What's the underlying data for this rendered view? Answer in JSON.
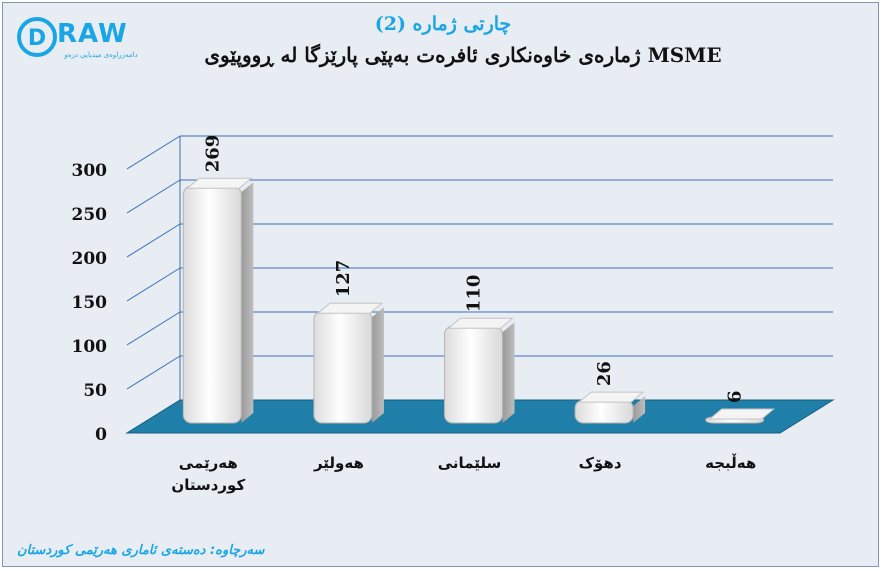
{
  "logo": {
    "word": "RAW",
    "letter": "D",
    "tagline": "دامەزراوەی میدیایی درەو"
  },
  "header": {
    "title": "چارتی ژمارە (2)",
    "subtitle": "ژمارەی خاوەنکاری ئافرەت بەپێی پارێزگا لە ڕووپێوی MSME"
  },
  "source": "سەرچاوە: دەستەی ئاماری هەرێمی کوردستان",
  "colors": {
    "accent": "#1aa6e4",
    "floor": "#1f7fa8",
    "grid": "#3a6fb5",
    "bar": "#f2f2f2"
  },
  "chart_data": {
    "type": "bar",
    "categories": [
      "هەرێمی کوردستان",
      "هەولێر",
      "سلێمانی",
      "دهۆک",
      "هەڵبجە"
    ],
    "values": [
      269,
      127,
      110,
      26,
      6
    ],
    "ylim": [
      0,
      300
    ],
    "yticks": [
      0,
      50,
      100,
      150,
      200,
      250,
      300
    ],
    "grid": true,
    "legend": "none"
  }
}
